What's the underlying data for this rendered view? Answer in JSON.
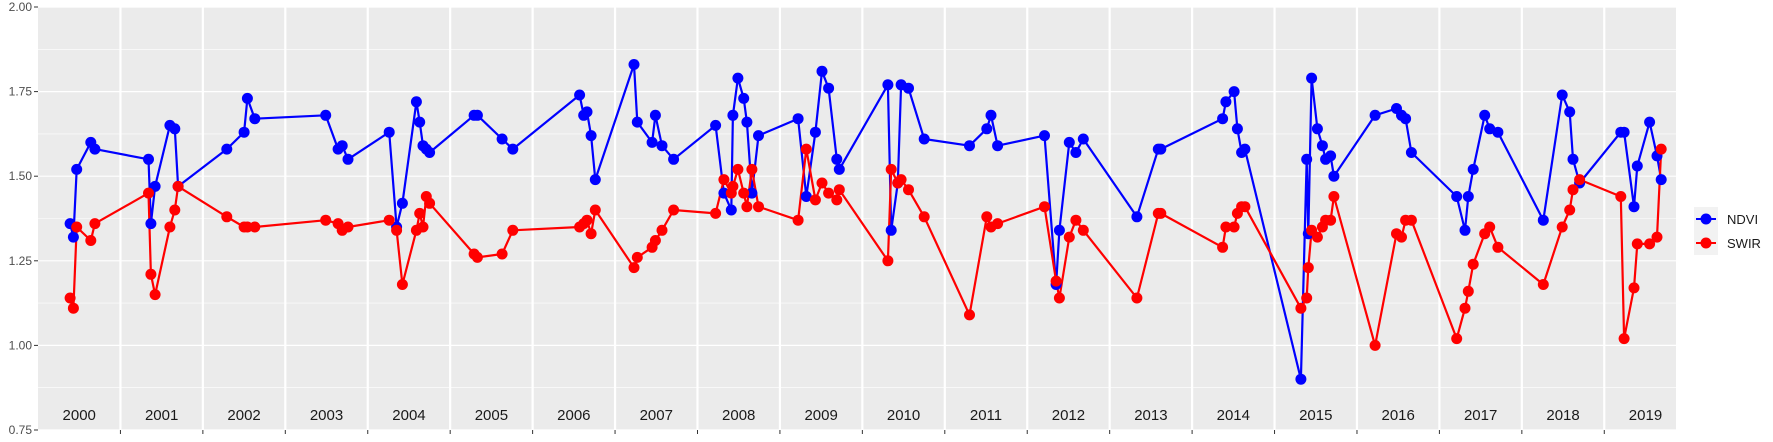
{
  "chart_data": {
    "type": "line",
    "title": "",
    "xlabel": "",
    "ylabel": "",
    "xlim": [
      2000.0,
      2019.87
    ],
    "ylim": [
      0.75,
      2.0
    ],
    "grid": true,
    "legend_position": "right",
    "yticks": [
      "0.75",
      "1.00",
      "1.25",
      "1.50",
      "1.75",
      "2.00"
    ],
    "ytick_values": [
      0.75,
      1.0,
      1.25,
      1.5,
      1.75,
      2.0
    ],
    "year_labels": [
      "2000",
      "2001",
      "2002",
      "2003",
      "2004",
      "2005",
      "2006",
      "2007",
      "2008",
      "2009",
      "2010",
      "2011",
      "2012",
      "2013",
      "2014",
      "2015",
      "2016",
      "2017",
      "2018",
      "2019"
    ],
    "x": [
      2000.39,
      2000.43,
      2000.47,
      2000.64,
      2000.69,
      2001.34,
      2001.37,
      2001.42,
      2001.6,
      2001.66,
      2001.7,
      2002.29,
      2002.5,
      2002.54,
      2002.63,
      2003.49,
      2003.64,
      2003.69,
      2003.76,
      2004.26,
      2004.35,
      2004.42,
      2004.59,
      2004.63,
      2004.67,
      2004.71,
      2004.75,
      2005.29,
      2005.33,
      2005.63,
      2005.76,
      2006.57,
      2006.62,
      2006.66,
      2006.71,
      2006.76,
      2007.23,
      2007.27,
      2007.45,
      2007.49,
      2007.57,
      2007.71,
      2008.22,
      2008.32,
      2008.41,
      2008.43,
      2008.49,
      2008.56,
      2008.6,
      2008.66,
      2008.74,
      2009.22,
      2009.32,
      2009.43,
      2009.51,
      2009.59,
      2009.69,
      2009.72,
      2010.31,
      2010.35,
      2010.43,
      2010.47,
      2010.56,
      2010.75,
      2011.3,
      2011.51,
      2011.56,
      2011.64,
      2012.21,
      2012.35,
      2012.39,
      2012.51,
      2012.59,
      2012.68,
      2013.33,
      2013.59,
      2013.62,
      2014.37,
      2014.41,
      2014.51,
      2014.55,
      2014.6,
      2014.64,
      2015.32,
      2015.39,
      2015.41,
      2015.45,
      2015.52,
      2015.58,
      2015.62,
      2015.68,
      2015.72,
      2016.22,
      2016.48,
      2016.54,
      2016.59,
      2016.66,
      2017.21,
      2017.31,
      2017.35,
      2017.41,
      2017.55,
      2017.61,
      2017.71,
      2018.26,
      2018.49,
      2018.58,
      2018.62,
      2018.7,
      2019.2,
      2019.24,
      2019.36,
      2019.4,
      2019.55,
      2019.64,
      2019.69
    ],
    "series": [
      {
        "name": "NDVI",
        "color": "#0000ff",
        "values": [
          1.36,
          1.32,
          1.52,
          1.6,
          1.58,
          1.55,
          1.36,
          1.47,
          1.65,
          1.64,
          1.47,
          1.58,
          1.63,
          1.73,
          1.67,
          1.68,
          1.58,
          1.59,
          1.55,
          1.63,
          1.35,
          1.42,
          1.72,
          1.66,
          1.59,
          1.58,
          1.57,
          1.68,
          1.68,
          1.61,
          1.58,
          1.74,
          1.68,
          1.69,
          1.62,
          1.49,
          1.83,
          1.66,
          1.6,
          1.68,
          1.59,
          1.55,
          1.65,
          1.45,
          1.4,
          1.68,
          1.79,
          1.73,
          1.66,
          1.45,
          1.62,
          1.67,
          1.44,
          1.63,
          1.81,
          1.76,
          1.55,
          1.52,
          1.77,
          1.34,
          1.48,
          1.77,
          1.76,
          1.61,
          1.59,
          1.64,
          1.68,
          1.59,
          1.62,
          1.18,
          1.34,
          1.6,
          1.57,
          1.61,
          1.38,
          1.58,
          1.58,
          1.67,
          1.72,
          1.75,
          1.64,
          1.57,
          1.58,
          0.9,
          1.55,
          1.33,
          1.79,
          1.64,
          1.59,
          1.55,
          1.56,
          1.5,
          1.68,
          1.7,
          1.68,
          1.67,
          1.57,
          1.44,
          1.34,
          1.44,
          1.52,
          1.68,
          1.64,
          1.63,
          1.37,
          1.74,
          1.69,
          1.55,
          1.48,
          1.63,
          1.63,
          1.41,
          1.53,
          1.66,
          1.56,
          1.49
        ]
      },
      {
        "name": "SWIR",
        "color": "#ff0000",
        "values": [
          1.14,
          1.11,
          1.35,
          1.31,
          1.36,
          1.45,
          1.21,
          1.15,
          1.35,
          1.4,
          1.47,
          1.38,
          1.35,
          1.35,
          1.35,
          1.37,
          1.36,
          1.34,
          1.35,
          1.37,
          1.34,
          1.18,
          1.34,
          1.39,
          1.35,
          1.44,
          1.42,
          1.27,
          1.26,
          1.27,
          1.34,
          1.35,
          1.36,
          1.37,
          1.33,
          1.4,
          1.23,
          1.26,
          1.29,
          1.31,
          1.34,
          1.4,
          1.39,
          1.49,
          1.45,
          1.47,
          1.52,
          1.45,
          1.41,
          1.52,
          1.41,
          1.37,
          1.58,
          1.43,
          1.48,
          1.45,
          1.43,
          1.46,
          1.25,
          1.52,
          1.48,
          1.49,
          1.46,
          1.38,
          1.09,
          1.38,
          1.35,
          1.36,
          1.41,
          1.19,
          1.14,
          1.32,
          1.37,
          1.34,
          1.14,
          1.39,
          1.39,
          1.29,
          1.35,
          1.35,
          1.39,
          1.41,
          1.41,
          1.11,
          1.14,
          1.23,
          1.34,
          1.32,
          1.35,
          1.37,
          1.37,
          1.44,
          1.0,
          1.33,
          1.32,
          1.37,
          1.37,
          1.02,
          1.11,
          1.16,
          1.24,
          1.33,
          1.35,
          1.29,
          1.18,
          1.35,
          1.4,
          1.46,
          1.49,
          1.44,
          1.02,
          1.17,
          1.3,
          1.3,
          1.32,
          1.58
        ]
      }
    ]
  }
}
